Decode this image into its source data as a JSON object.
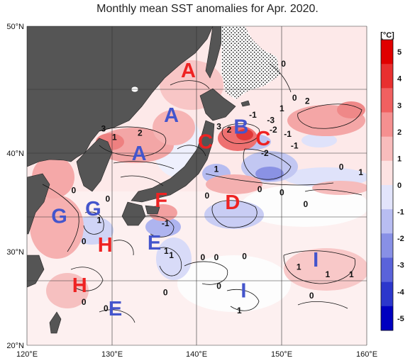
{
  "title": "Monthly mean SST anomalies for Apr. 2020.",
  "colors": {
    "land": "#555555",
    "warm_label": "#ee2222",
    "cold_label": "#4455cc",
    "grid": "#333333"
  },
  "axes": {
    "x_ticks": [
      "120°E",
      "130°E",
      "140°E",
      "150°E",
      "160°E"
    ],
    "y_ticks": [
      "50°N",
      "40°N",
      "30°N",
      "20°N"
    ]
  },
  "colorbar": {
    "unit": "[°C]",
    "ticks": [
      "5",
      "4",
      "3",
      "2",
      "1",
      "0",
      "-1",
      "-2",
      "-3",
      "-4",
      "-5"
    ],
    "colors": [
      "#e00000",
      "#e83030",
      "#f06060",
      "#f59090",
      "#f8bcbc",
      "#fde2e2",
      "#e2e4fb",
      "#b8bdf2",
      "#8890e6",
      "#5a63da",
      "#2c37cc",
      "#0000c0"
    ]
  },
  "regions": [
    {
      "label": "A",
      "kind": "warm",
      "lon": 139.0,
      "lat": 45.2
    },
    {
      "label": "A",
      "kind": "cold",
      "lon": 137.0,
      "lat": 41.0
    },
    {
      "label": "A",
      "kind": "cold",
      "lon": 133.2,
      "lat": 37.4
    },
    {
      "label": "B",
      "kind": "cold",
      "lon": 145.2,
      "lat": 39.9
    },
    {
      "label": "C",
      "kind": "warm",
      "lon": 141.0,
      "lat": 38.5
    },
    {
      "label": "C",
      "kind": "warm",
      "lon": 147.8,
      "lat": 38.8
    },
    {
      "label": "D",
      "kind": "warm",
      "lon": 144.2,
      "lat": 32.8
    },
    {
      "label": "F",
      "kind": "warm",
      "lon": 135.8,
      "lat": 33.0
    },
    {
      "label": "G",
      "kind": "cold",
      "lon": 123.8,
      "lat": 31.5
    },
    {
      "label": "G",
      "kind": "cold",
      "lon": 127.8,
      "lat": 32.2
    },
    {
      "label": "H",
      "kind": "warm",
      "lon": 129.2,
      "lat": 28.8
    },
    {
      "label": "H",
      "kind": "warm",
      "lon": 126.2,
      "lat": 25.0
    },
    {
      "label": "E",
      "kind": "cold",
      "lon": 135.0,
      "lat": 29.0
    },
    {
      "label": "E",
      "kind": "cold",
      "lon": 130.4,
      "lat": 22.8
    },
    {
      "label": "I",
      "kind": "cold",
      "lon": 154.0,
      "lat": 27.4
    },
    {
      "label": "I",
      "kind": "cold",
      "lon": 145.5,
      "lat": 24.5
    }
  ],
  "contour_labels": [
    {
      "text": "3",
      "lon": 129.0,
      "lat": 40.1
    },
    {
      "text": "1",
      "lon": 130.3,
      "lat": 39.3
    },
    {
      "text": "2",
      "lon": 133.3,
      "lat": 39.7
    },
    {
      "text": "0",
      "lon": 150.2,
      "lat": 46.2
    },
    {
      "text": "0",
      "lon": 151.5,
      "lat": 43.0
    },
    {
      "text": "2",
      "lon": 153.0,
      "lat": 42.7
    },
    {
      "text": "1",
      "lon": 150.0,
      "lat": 42.0
    },
    {
      "text": "-1",
      "lon": 146.6,
      "lat": 41.4
    },
    {
      "text": "-3",
      "lon": 148.7,
      "lat": 40.9
    },
    {
      "text": "3",
      "lon": 142.6,
      "lat": 40.3
    },
    {
      "text": "2",
      "lon": 143.8,
      "lat": 40.0
    },
    {
      "text": "-2",
      "lon": 149.0,
      "lat": 40.0
    },
    {
      "text": "-1",
      "lon": 150.7,
      "lat": 39.6
    },
    {
      "text": "-1",
      "lon": 151.5,
      "lat": 38.5
    },
    {
      "text": "-2",
      "lon": 148.0,
      "lat": 37.8
    },
    {
      "text": "1",
      "lon": 142.3,
      "lat": 36.3
    },
    {
      "text": "0",
      "lon": 150.0,
      "lat": 34.1
    },
    {
      "text": "0",
      "lon": 157.0,
      "lat": 36.5
    },
    {
      "text": "1",
      "lon": 159.3,
      "lat": 36.0
    },
    {
      "text": "0",
      "lon": 125.5,
      "lat": 34.3
    },
    {
      "text": "0",
      "lon": 129.5,
      "lat": 33.5
    },
    {
      "text": "0",
      "lon": 141.2,
      "lat": 33.8
    },
    {
      "text": "0",
      "lon": 147.4,
      "lat": 34.4
    },
    {
      "text": "0",
      "lon": 152.8,
      "lat": 33.0
    },
    {
      "text": "-1",
      "lon": 136.3,
      "lat": 31.2
    },
    {
      "text": "1",
      "lon": 128.5,
      "lat": 31.5
    },
    {
      "text": "0",
      "lon": 126.7,
      "lat": 29.5
    },
    {
      "text": "1",
      "lon": 136.4,
      "lat": 28.6
    },
    {
      "text": "1",
      "lon": 137.0,
      "lat": 28.2
    },
    {
      "text": "0",
      "lon": 140.7,
      "lat": 28.0
    },
    {
      "text": "0",
      "lon": 142.3,
      "lat": 28.0
    },
    {
      "text": "0",
      "lon": 145.6,
      "lat": 28.1
    },
    {
      "text": "1",
      "lon": 152.0,
      "lat": 27.1
    },
    {
      "text": "1",
      "lon": 155.4,
      "lat": 26.4
    },
    {
      "text": "1",
      "lon": 158.2,
      "lat": 26.4
    },
    {
      "text": "0",
      "lon": 142.6,
      "lat": 25.3
    },
    {
      "text": "0",
      "lon": 136.3,
      "lat": 24.7
    },
    {
      "text": "0",
      "lon": 126.7,
      "lat": 23.8
    },
    {
      "text": "0",
      "lon": 129.3,
      "lat": 23.2
    },
    {
      "text": "1",
      "lon": 145.0,
      "lat": 23.0
    },
    {
      "text": "0",
      "lon": 153.5,
      "lat": 24.4
    }
  ]
}
